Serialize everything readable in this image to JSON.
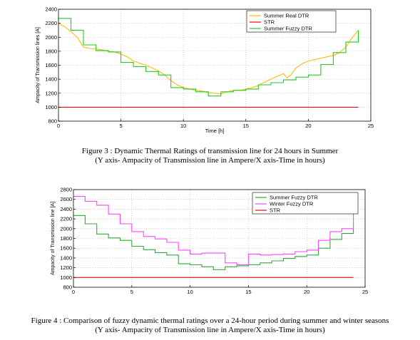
{
  "chart_data": [
    {
      "type": "line",
      "xlabel": "Time [h]",
      "ylabel": "Ampacity of Transmission lines [A]",
      "xlim": [
        0,
        25
      ],
      "ylim": [
        800,
        2400
      ],
      "xticks": [
        0,
        5,
        10,
        15,
        20,
        25
      ],
      "yticks": [
        800,
        1000,
        1200,
        1400,
        1600,
        1800,
        2000,
        2200,
        2400
      ],
      "grid": true,
      "legend": "top-right",
      "series": [
        {
          "name": "Summer Real DTR",
          "color": "#ffbb00",
          "step": false,
          "x": [
            0,
            0.5,
            1,
            1.5,
            2,
            2.5,
            3,
            3.5,
            4,
            4.5,
            5,
            5.5,
            6,
            6.5,
            7,
            7.5,
            8,
            8.5,
            9,
            9.5,
            10,
            10.5,
            11,
            11.5,
            12,
            12.5,
            13,
            13.5,
            14,
            14.5,
            15,
            15.5,
            16,
            16.5,
            17,
            17.5,
            18,
            18.3,
            18.6,
            19,
            19.5,
            20,
            20.5,
            21,
            21.5,
            22,
            22.5,
            23,
            23.5,
            24
          ],
          "y": [
            2200,
            2150,
            2080,
            2000,
            1860,
            1840,
            1830,
            1820,
            1800,
            1790,
            1760,
            1720,
            1660,
            1630,
            1600,
            1560,
            1520,
            1460,
            1380,
            1320,
            1280,
            1260,
            1240,
            1230,
            1210,
            1200,
            1190,
            1220,
            1240,
            1240,
            1260,
            1280,
            1310,
            1360,
            1400,
            1440,
            1480,
            1420,
            1460,
            1560,
            1620,
            1660,
            1680,
            1700,
            1720,
            1740,
            1780,
            1860,
            1990,
            2100
          ]
        },
        {
          "name": "STR",
          "color": "#ff0000",
          "step": false,
          "x": [
            0,
            24
          ],
          "y": [
            1000,
            1000
          ]
        },
        {
          "name": "Summer Fuzzy DTR",
          "color": "#22cc22",
          "step": true,
          "x": [
            0,
            1,
            2,
            3,
            4,
            5,
            6,
            7,
            8,
            9,
            10,
            11,
            12,
            13,
            14,
            15,
            16,
            17,
            18,
            19,
            20,
            21,
            22,
            23,
            24
          ],
          "y": [
            2270,
            2100,
            1890,
            1810,
            1790,
            1640,
            1580,
            1510,
            1460,
            1280,
            1260,
            1220,
            1160,
            1220,
            1240,
            1260,
            1320,
            1350,
            1390,
            1430,
            1460,
            1610,
            1780,
            1930,
            2100
          ]
        }
      ]
    },
    {
      "type": "line",
      "xlabel": "",
      "ylabel": "Ampacity of Transmission line [A]",
      "xlim": [
        0,
        25
      ],
      "ylim": [
        800,
        2800
      ],
      "xticks": [
        0,
        5,
        10,
        15,
        20,
        25
      ],
      "yticks": [
        800,
        1000,
        1200,
        1400,
        1600,
        1800,
        2000,
        2200,
        2400,
        2600,
        2800
      ],
      "grid": true,
      "legend": "top-right",
      "series": [
        {
          "name": "Summer Fuzzy DTR",
          "color": "#33aa33",
          "step": true,
          "x": [
            0,
            1,
            2,
            3,
            4,
            5,
            6,
            7,
            8,
            9,
            10,
            11,
            12,
            13,
            14,
            15,
            16,
            17,
            18,
            19,
            20,
            21,
            22,
            23,
            24
          ],
          "y": [
            2270,
            2100,
            1890,
            1810,
            1760,
            1640,
            1570,
            1510,
            1460,
            1280,
            1260,
            1220,
            1160,
            1220,
            1240,
            1260,
            1300,
            1340,
            1390,
            1430,
            1460,
            1600,
            1780,
            1900,
            2050
          ]
        },
        {
          "name": "Winter Fuzzy DTR",
          "color": "#ff44ff",
          "step": true,
          "x": [
            0,
            1,
            2,
            3,
            4,
            5,
            6,
            7,
            8,
            9,
            10,
            11,
            12,
            13,
            14,
            15,
            16,
            17,
            18,
            19,
            20,
            21,
            22,
            23,
            24
          ],
          "y": [
            2660,
            2560,
            2480,
            2300,
            2100,
            1940,
            1840,
            1790,
            1720,
            1560,
            1480,
            1500,
            1500,
            1300,
            1260,
            1480,
            1460,
            1470,
            1480,
            1530,
            1560,
            1760,
            1940,
            2000,
            2300
          ]
        },
        {
          "name": "STR",
          "color": "#ff0000",
          "step": false,
          "x": [
            0,
            24
          ],
          "y": [
            1000,
            1000
          ]
        }
      ]
    }
  ],
  "captions": {
    "fig3_line1": "Figure 3 : Dynamic Thermal Ratings of transmission line for 24 hours in Summer",
    "fig3_line2": "(Y axis- Ampacity of Transmission line in Ampere/X axis-Time in hours)",
    "fig4_line1": "Figure 4 : Comparison of fuzzy dynamic thermal ratings over  a 24-hour period during summer and winter seasons",
    "fig4_line2": "(Y axis- Ampacity of Transmission line in Ampere/X axis-Time in hours)"
  }
}
